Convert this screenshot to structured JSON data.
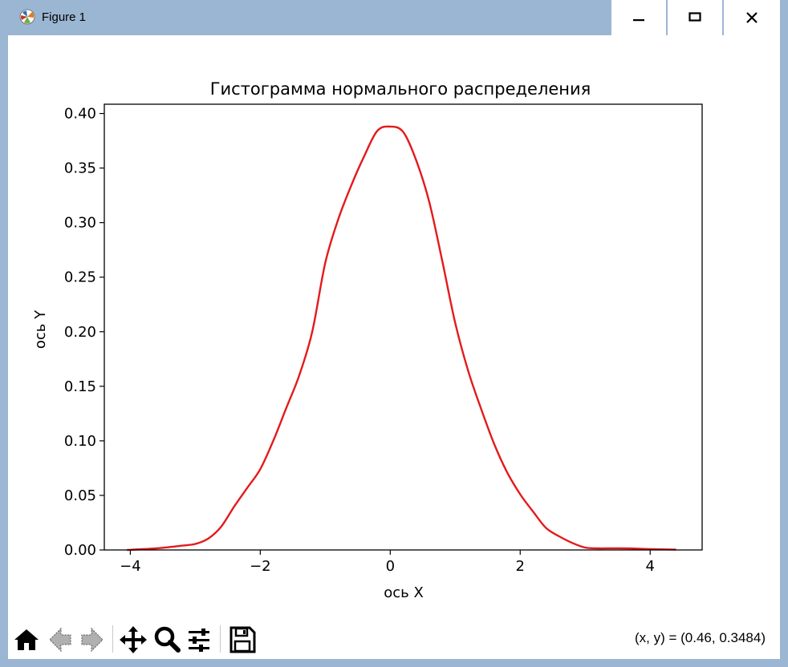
{
  "window": {
    "title": "Figure 1",
    "buttons": {
      "minimize": "minimize-icon",
      "maximize": "maximize-icon",
      "close": "close-icon"
    }
  },
  "toolbar": {
    "icons": [
      "home-icon",
      "back-arrow-icon",
      "forward-arrow-icon",
      "pan-icon",
      "zoom-icon",
      "configure-subplots-icon",
      "save-icon"
    ],
    "coords_text": "(x, y) = (0.46, 0.3484)"
  },
  "colors": {
    "line": "#e31a1c",
    "titlebar": "#9bb6d2"
  },
  "chart_data": {
    "type": "line",
    "title": "Гистограмма нормального распределения",
    "xlabel": "ось X",
    "ylabel": "ось Y",
    "xlim": [
      -4.4,
      4.8
    ],
    "ylim": [
      0,
      0.4085
    ],
    "xticks": [
      -4,
      -2,
      0,
      2,
      4
    ],
    "xtick_labels": [
      "−4",
      "−2",
      "0",
      "2",
      "4"
    ],
    "yticks": [
      0.0,
      0.05,
      0.1,
      0.15,
      0.2,
      0.25,
      0.3,
      0.35,
      0.4
    ],
    "ytick_labels": [
      "0.00",
      "0.05",
      "0.10",
      "0.15",
      "0.20",
      "0.25",
      "0.30",
      "0.35",
      "0.40"
    ],
    "grid": false,
    "series": [
      {
        "color": "#e31a1c",
        "x": [
          -4.05,
          -3.6,
          -3.2,
          -3.0,
          -2.8,
          -2.6,
          -2.4,
          -2.2,
          -2.0,
          -1.8,
          -1.6,
          -1.4,
          -1.2,
          -1.0,
          -0.8,
          -0.6,
          -0.4,
          -0.2,
          0.0,
          0.2,
          0.4,
          0.6,
          0.8,
          1.0,
          1.2,
          1.4,
          1.6,
          1.8,
          2.0,
          2.2,
          2.4,
          2.6,
          2.8,
          3.0,
          3.2,
          3.6,
          4.0,
          4.4
        ],
        "y": [
          0.0,
          0.0015,
          0.004,
          0.0055,
          0.0105,
          0.0215,
          0.04,
          0.057,
          0.074,
          0.1,
          0.13,
          0.16,
          0.2,
          0.263,
          0.303,
          0.334,
          0.361,
          0.384,
          0.388,
          0.383,
          0.357,
          0.319,
          0.265,
          0.208,
          0.164,
          0.129,
          0.097,
          0.071,
          0.051,
          0.035,
          0.02,
          0.0125,
          0.0065,
          0.0022,
          0.0015,
          0.0015,
          0.0008,
          0.0003
        ]
      }
    ]
  }
}
